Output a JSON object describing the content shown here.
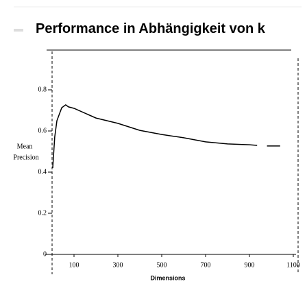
{
  "chart_data": {
    "type": "line",
    "title": "Performance in Abhängigkeit von k",
    "xlabel": "Dimensions",
    "ylabel": [
      "Mean",
      "Precision"
    ],
    "x": [
      3,
      12,
      22,
      44,
      62,
      75,
      100,
      200,
      300,
      400,
      500,
      600,
      700,
      800,
      900,
      935,
      950,
      980,
      1040
    ],
    "series": [
      {
        "name": "Mean Precision",
        "color": "#000000",
        "values": [
          0.42,
          0.57,
          0.65,
          0.713,
          0.727,
          0.717,
          0.71,
          0.663,
          0.637,
          0.603,
          0.583,
          0.567,
          0.547,
          0.537,
          0.533,
          0.53,
          null,
          0.527,
          0.527
        ]
      }
    ],
    "xlim": [
      0,
      1100
    ],
    "ylim": [
      0,
      1
    ],
    "xticks": [
      100,
      300,
      500,
      700,
      900,
      {
        "value": 1100,
        "label": "1100"
      }
    ],
    "yticks": [
      0,
      0.2,
      0.4,
      0.6,
      0.8
    ]
  }
}
